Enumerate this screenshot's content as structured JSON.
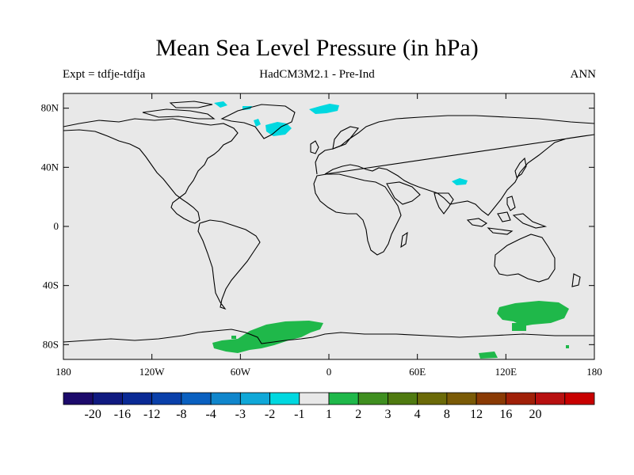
{
  "title": "Mean Sea Level Pressure (in hPa)",
  "experiment": "Expt = tdfje-tdfja",
  "model": "HadCM3M2.1 - Pre-Ind",
  "season": "ANN",
  "map": {
    "projection": "cylindrical equidistant",
    "lon_range": [
      -180,
      180
    ],
    "lat_range": [
      -90,
      90
    ],
    "background_color": "#e8e8e8",
    "lat_ticks": [
      {
        "value": 80,
        "label": "80N"
      },
      {
        "value": 40,
        "label": "40N"
      },
      {
        "value": 0,
        "label": "0"
      },
      {
        "value": -40,
        "label": "40S"
      },
      {
        "value": -80,
        "label": "80S"
      }
    ],
    "lon_ticks": [
      {
        "value": -180,
        "label": "180"
      },
      {
        "value": -120,
        "label": "120W"
      },
      {
        "value": -60,
        "label": "60W"
      },
      {
        "value": 0,
        "label": "0"
      },
      {
        "value": 60,
        "label": "60E"
      },
      {
        "value": 120,
        "label": "120E"
      },
      {
        "value": 180,
        "label": "180"
      }
    ],
    "anomaly_regions": [
      {
        "name": "baffin-cyan",
        "level": "-2 to -1",
        "color": "#00d8e0"
      },
      {
        "name": "greenland-cyan",
        "level": "-2 to -1",
        "color": "#00d8e0"
      },
      {
        "name": "barents-cyan",
        "level": "-2 to -1",
        "color": "#00d8e0"
      },
      {
        "name": "tibet-cyan",
        "level": "-2 to -1",
        "color": "#00d8e0"
      },
      {
        "name": "weddell-green",
        "level": "1 to 2",
        "color": "#1fb84a"
      },
      {
        "name": "southern-ocean-green",
        "level": "1 to 2",
        "color": "#1fb84a"
      }
    ]
  },
  "colorbar": {
    "colors": [
      "#1c0a6b",
      "#101a80",
      "#0a2a95",
      "#0a40aa",
      "#0a60c0",
      "#1086cc",
      "#10a8d8",
      "#00d8e0",
      "#e8e8e8",
      "#1fb84a",
      "#3f8f20",
      "#4f7a10",
      "#6b6a08",
      "#7a5a06",
      "#8a3a04",
      "#a02008",
      "#b81010",
      "#c80000"
    ],
    "labels": [
      "-20",
      "-16",
      "-12",
      "-8",
      "-4",
      "-3",
      "-2",
      "-1",
      "1",
      "2",
      "3",
      "4",
      "8",
      "12",
      "16",
      "20"
    ]
  }
}
